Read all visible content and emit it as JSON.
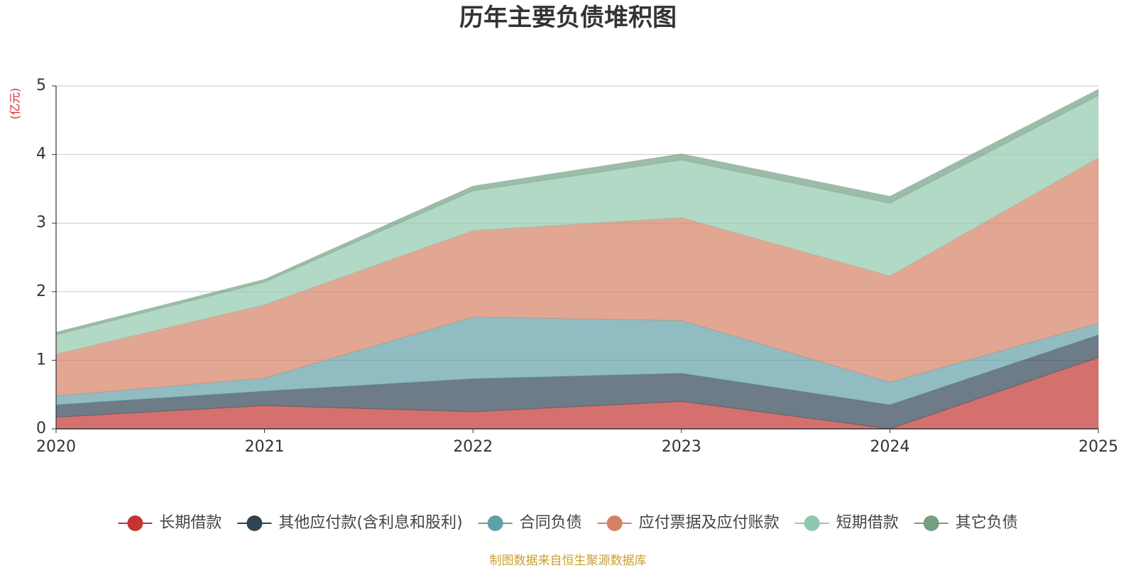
{
  "chart_data": {
    "type": "area",
    "stacked": true,
    "title": "历年主要负债堆积图",
    "y_unit_label": "(亿元)",
    "x": [
      "2020",
      "2021",
      "2022",
      "2023",
      "2024",
      "2025"
    ],
    "ylim": [
      0,
      5
    ],
    "yticks": [
      "0",
      "1",
      "2",
      "3",
      "4",
      "5"
    ],
    "grid": true,
    "legend_position": "bottom",
    "series": [
      {
        "name": "长期借款",
        "color": "#c23531",
        "values": [
          0.17,
          0.34,
          0.25,
          0.4,
          0.0,
          1.04
        ]
      },
      {
        "name": "其他应付款(含利息和股利)",
        "color": "#2f4554",
        "values": [
          0.18,
          0.21,
          0.48,
          0.41,
          0.35,
          0.33
        ]
      },
      {
        "name": "合同负债",
        "color": "#61a0a8",
        "values": [
          0.13,
          0.19,
          0.9,
          0.77,
          0.33,
          0.17
        ]
      },
      {
        "name": "应付票据及应付账款",
        "color": "#d48265",
        "values": [
          0.61,
          1.07,
          1.26,
          1.5,
          1.55,
          2.41
        ]
      },
      {
        "name": "短期借款",
        "color": "#91c7ae",
        "values": [
          0.28,
          0.33,
          0.58,
          0.84,
          1.06,
          0.91
        ]
      },
      {
        "name": "其它负债",
        "color": "#749f83",
        "values": [
          0.04,
          0.04,
          0.07,
          0.09,
          0.1,
          0.09
        ]
      }
    ]
  },
  "source_text": "制图数据来自恒生聚源数据库",
  "source_color": "#c8a032"
}
